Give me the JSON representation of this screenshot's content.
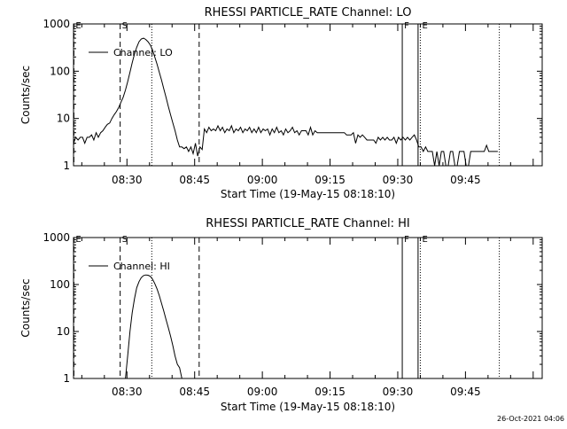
{
  "timestamp": "26-Oct-2021 04:06",
  "chart_data": [
    {
      "type": "line",
      "title": "RHESSI PARTICLE_RATE Channel: LO",
      "xlabel": "Start Time (19-May-15 08:18:10)",
      "ylabel": "Counts/sec",
      "yscale": "log",
      "ylim": [
        1,
        1000
      ],
      "xlim": [
        "08:18:10",
        "10:02:00"
      ],
      "yticks": [
        {
          "value": 1,
          "label": "1"
        },
        {
          "value": 10,
          "label": "10"
        },
        {
          "value": 100,
          "label": "100"
        },
        {
          "value": 1000,
          "label": "1000"
        }
      ],
      "xticks": [
        {
          "time": "08:30",
          "label": "08:30"
        },
        {
          "time": "08:45",
          "label": "08:45"
        },
        {
          "time": "09:00",
          "label": "09:00"
        },
        {
          "time": "09:15",
          "label": "09:15"
        },
        {
          "time": "09:30",
          "label": "09:30"
        },
        {
          "time": "09:45",
          "label": "09:45"
        }
      ],
      "legend": {
        "label": "Channel: LO",
        "position": "top-left"
      },
      "markers": [
        {
          "time": "08:18:15",
          "style": "dashed",
          "label": "E"
        },
        {
          "time": "08:28:30",
          "style": "dashed",
          "label": "S"
        },
        {
          "time": "08:35:30",
          "style": "dotted",
          "label": ""
        },
        {
          "time": "08:46:00",
          "style": "dashed",
          "label": ""
        },
        {
          "time": "09:31:00",
          "style": "solid",
          "label": "F"
        },
        {
          "time": "09:34:30",
          "style": "solid",
          "label": ""
        },
        {
          "time": "09:35:00",
          "style": "dotted",
          "label": "E"
        },
        {
          "time": "09:52:30",
          "style": "dotted",
          "label": ""
        }
      ],
      "series": [
        {
          "name": "",
          "points": [
            [
              "08:18:10",
              3
            ],
            [
              "08:18:40",
              4
            ],
            [
              "08:19:10",
              3.5
            ],
            [
              "08:19:40",
              4
            ],
            [
              "08:20:10",
              4
            ],
            [
              "08:20:40",
              3
            ],
            [
              "08:21:10",
              4
            ],
            [
              "08:21:40",
              4
            ],
            [
              "08:22:10",
              4.5
            ],
            [
              "08:22:40",
              3.5
            ],
            [
              "08:23:10",
              5
            ],
            [
              "08:23:40",
              4
            ],
            [
              "08:24:10",
              5
            ],
            [
              "08:24:40",
              5.5
            ],
            [
              "08:25:10",
              6.5
            ],
            [
              "08:25:40",
              7.5
            ],
            [
              "08:26:10",
              8
            ],
            [
              "08:26:40",
              10
            ],
            [
              "08:27:10",
              12
            ],
            [
              "08:27:40",
              14
            ],
            [
              "08:28:10",
              17
            ],
            [
              "08:28:40",
              22
            ],
            [
              "08:29:10",
              28
            ],
            [
              "08:29:40",
              40
            ],
            [
              "08:30:10",
              60
            ],
            [
              "08:30:40",
              95
            ],
            [
              "08:31:10",
              150
            ],
            [
              "08:31:40",
              230
            ],
            [
              "08:32:10",
              320
            ],
            [
              "08:32:40",
              420
            ],
            [
              "08:33:10",
              480
            ],
            [
              "08:33:40",
              500
            ],
            [
              "08:34:10",
              470
            ],
            [
              "08:34:40",
              420
            ],
            [
              "08:35:10",
              360
            ],
            [
              "08:35:40",
              280
            ],
            [
              "08:36:10",
              200
            ],
            [
              "08:36:40",
              140
            ],
            [
              "08:37:10",
              95
            ],
            [
              "08:37:40",
              65
            ],
            [
              "08:38:10",
              42
            ],
            [
              "08:38:40",
              28
            ],
            [
              "08:39:10",
              18
            ],
            [
              "08:39:40",
              12
            ],
            [
              "08:40:10",
              8
            ],
            [
              "08:40:40",
              5.5
            ],
            [
              "08:41:10",
              3.5
            ],
            [
              "08:41:40",
              2.5
            ],
            [
              "08:42:10",
              2.5
            ],
            [
              "08:42:40",
              2.3
            ],
            [
              "08:43:10",
              2.5
            ],
            [
              "08:43:40",
              2
            ],
            [
              "08:44:10",
              2.5
            ],
            [
              "08:44:40",
              1.8
            ],
            [
              "08:45:10",
              3
            ],
            [
              "08:45:40",
              1.6
            ],
            [
              "08:46:10",
              2.5
            ],
            [
              "08:46:40",
              2.2
            ],
            [
              "08:47:10",
              6
            ],
            [
              "08:47:40",
              5
            ],
            [
              "08:48:10",
              6.5
            ],
            [
              "08:48:40",
              5.5
            ],
            [
              "08:49:10",
              6
            ],
            [
              "08:49:40",
              5.5
            ],
            [
              "08:50:10",
              7
            ],
            [
              "08:50:40",
              5.5
            ],
            [
              "08:51:10",
              6.5
            ],
            [
              "08:51:40",
              5
            ],
            [
              "08:52:10",
              6
            ],
            [
              "08:52:40",
              5.5
            ],
            [
              "08:53:10",
              7
            ],
            [
              "08:53:40",
              5
            ],
            [
              "08:54:10",
              6
            ],
            [
              "08:54:40",
              5.5
            ],
            [
              "08:55:10",
              6.5
            ],
            [
              "08:55:40",
              5
            ],
            [
              "08:56:10",
              6
            ],
            [
              "08:56:40",
              5.5
            ],
            [
              "08:57:10",
              6.5
            ],
            [
              "08:57:40",
              5
            ],
            [
              "08:58:10",
              6
            ],
            [
              "08:58:40",
              5
            ],
            [
              "08:59:10",
              6.5
            ],
            [
              "08:59:40",
              5
            ],
            [
              "09:00:10",
              6
            ],
            [
              "09:00:40",
              5.5
            ],
            [
              "09:01:10",
              6
            ],
            [
              "09:01:40",
              4.5
            ],
            [
              "09:02:10",
              6
            ],
            [
              "09:02:40",
              5
            ],
            [
              "09:03:10",
              6.5
            ],
            [
              "09:03:40",
              5
            ],
            [
              "09:04:10",
              5.5
            ],
            [
              "09:04:40",
              4.5
            ],
            [
              "09:05:10",
              6
            ],
            [
              "09:05:40",
              5
            ],
            [
              "09:06:10",
              5.5
            ],
            [
              "09:06:40",
              6.5
            ],
            [
              "09:07:10",
              5
            ],
            [
              "09:07:40",
              5.5
            ],
            [
              "09:08:10",
              4.5
            ],
            [
              "09:08:40",
              5.5
            ],
            [
              "09:09:10",
              5.5
            ],
            [
              "09:09:40",
              5.5
            ],
            [
              "09:10:10",
              4.5
            ],
            [
              "09:10:40",
              6.5
            ],
            [
              "09:11:10",
              4.5
            ],
            [
              "09:11:40",
              5.5
            ],
            [
              "09:12:10",
              5
            ],
            [
              "09:12:40",
              5
            ],
            [
              "09:13:10",
              5
            ],
            [
              "09:13:40",
              5
            ],
            [
              "09:14:10",
              5
            ],
            [
              "09:14:40",
              5
            ],
            [
              "09:15:10",
              5
            ],
            [
              "09:15:40",
              5
            ],
            [
              "09:16:10",
              5
            ],
            [
              "09:16:40",
              5
            ],
            [
              "09:17:10",
              5
            ],
            [
              "09:17:40",
              5
            ],
            [
              "09:18:10",
              5
            ],
            [
              "09:18:40",
              4.5
            ],
            [
              "09:19:10",
              4.5
            ],
            [
              "09:19:40",
              4.5
            ],
            [
              "09:20:10",
              5
            ],
            [
              "09:20:40",
              3
            ],
            [
              "09:21:10",
              4.5
            ],
            [
              "09:21:40",
              4
            ],
            [
              "09:22:10",
              4.5
            ],
            [
              "09:22:40",
              4
            ],
            [
              "09:23:10",
              3.5
            ],
            [
              "09:23:40",
              3.5
            ],
            [
              "09:24:10",
              3.5
            ],
            [
              "09:24:40",
              3.5
            ],
            [
              "09:25:10",
              3
            ],
            [
              "09:25:40",
              4
            ],
            [
              "09:26:10",
              3.5
            ],
            [
              "09:26:40",
              4
            ],
            [
              "09:27:10",
              3.5
            ],
            [
              "09:27:40",
              4
            ],
            [
              "09:28:10",
              3.5
            ],
            [
              "09:28:40",
              3.5
            ],
            [
              "09:29:10",
              4
            ],
            [
              "09:29:40",
              3
            ],
            [
              "09:30:10",
              4
            ],
            [
              "09:30:40",
              3.5
            ],
            [
              "09:31:10",
              4
            ],
            [
              "09:31:40",
              3.5
            ],
            [
              "09:32:10",
              4
            ],
            [
              "09:32:40",
              3.5
            ],
            [
              "09:33:10",
              4
            ],
            [
              "09:33:40",
              4.5
            ],
            [
              "09:34:10",
              3.5
            ],
            [
              "09:34:40",
              2.5
            ],
            [
              "09:35:10",
              2.5
            ],
            [
              "09:35:40",
              2
            ],
            [
              "09:36:10",
              2.5
            ],
            [
              "09:36:40",
              2
            ],
            [
              "09:37:10",
              2
            ],
            [
              "09:37:40",
              2
            ],
            [
              "09:38:10",
              1
            ],
            [
              "09:38:40",
              2
            ],
            [
              "09:39:10",
              1
            ],
            [
              "09:39:40",
              2
            ],
            [
              "09:40:10",
              2
            ],
            [
              "09:40:40",
              1
            ],
            [
              "09:41:10",
              1
            ],
            [
              "09:41:40",
              2
            ],
            [
              "09:42:10",
              2
            ],
            [
              "09:42:40",
              1
            ],
            [
              "09:43:10",
              1
            ],
            [
              "09:43:40",
              2
            ],
            [
              "09:44:10",
              2
            ],
            [
              "09:44:40",
              2
            ],
            [
              "09:45:10",
              1
            ],
            [
              "09:45:40",
              1
            ],
            [
              "09:46:10",
              2
            ],
            [
              "09:46:40",
              2
            ],
            [
              "09:47:10",
              2
            ],
            [
              "09:47:40",
              2
            ],
            [
              "09:48:10",
              2
            ],
            [
              "09:48:40",
              2
            ],
            [
              "09:49:10",
              2
            ],
            [
              "09:49:40",
              2.7
            ],
            [
              "09:50:10",
              2
            ],
            [
              "09:50:40",
              2
            ],
            [
              "09:51:10",
              2
            ],
            [
              "09:51:40",
              2
            ],
            [
              "09:52:10",
              2
            ]
          ]
        }
      ]
    },
    {
      "type": "line",
      "title": "RHESSI PARTICLE_RATE Channel: HI",
      "xlabel": "Start Time (19-May-15 08:18:10)",
      "ylabel": "Counts/sec",
      "yscale": "log",
      "ylim": [
        1,
        1000
      ],
      "xlim": [
        "08:18:10",
        "10:02:00"
      ],
      "yticks": [
        {
          "value": 1,
          "label": "1"
        },
        {
          "value": 10,
          "label": "10"
        },
        {
          "value": 100,
          "label": "100"
        },
        {
          "value": 1000,
          "label": "1000"
        }
      ],
      "xticks": [
        {
          "time": "08:30",
          "label": "08:30"
        },
        {
          "time": "08:45",
          "label": "08:45"
        },
        {
          "time": "09:00",
          "label": "09:00"
        },
        {
          "time": "09:15",
          "label": "09:15"
        },
        {
          "time": "09:30",
          "label": "09:30"
        },
        {
          "time": "09:45",
          "label": "09:45"
        }
      ],
      "legend": {
        "label": "Channel: HI",
        "position": "top-left"
      },
      "markers": [
        {
          "time": "08:18:15",
          "style": "dashed",
          "label": "E"
        },
        {
          "time": "08:28:30",
          "style": "dashed",
          "label": "S"
        },
        {
          "time": "08:35:30",
          "style": "dotted",
          "label": ""
        },
        {
          "time": "08:46:00",
          "style": "dashed",
          "label": ""
        },
        {
          "time": "09:31:00",
          "style": "solid",
          "label": "F"
        },
        {
          "time": "09:34:30",
          "style": "solid",
          "label": ""
        },
        {
          "time": "09:35:00",
          "style": "dotted",
          "label": "E"
        },
        {
          "time": "09:52:30",
          "style": "dotted",
          "label": ""
        }
      ],
      "series": [
        {
          "name": "",
          "points": [
            [
              "08:29:40",
              1
            ],
            [
              "08:30:10",
              3
            ],
            [
              "08:30:40",
              10
            ],
            [
              "08:31:10",
              25
            ],
            [
              "08:31:40",
              50
            ],
            [
              "08:32:10",
              85
            ],
            [
              "08:32:40",
              115
            ],
            [
              "08:33:10",
              140
            ],
            [
              "08:33:40",
              155
            ],
            [
              "08:34:10",
              160
            ],
            [
              "08:34:40",
              158
            ],
            [
              "08:35:10",
              150
            ],
            [
              "08:35:40",
              130
            ],
            [
              "08:36:10",
              105
            ],
            [
              "08:36:40",
              80
            ],
            [
              "08:37:10",
              58
            ],
            [
              "08:37:40",
              40
            ],
            [
              "08:38:10",
              27
            ],
            [
              "08:38:40",
              18
            ],
            [
              "08:39:10",
              12
            ],
            [
              "08:39:40",
              8
            ],
            [
              "08:40:10",
              5
            ],
            [
              "08:40:40",
              3
            ],
            [
              "08:41:10",
              2
            ],
            [
              "08:41:40",
              1.7
            ],
            [
              "08:42:10",
              1
            ]
          ]
        }
      ]
    }
  ]
}
